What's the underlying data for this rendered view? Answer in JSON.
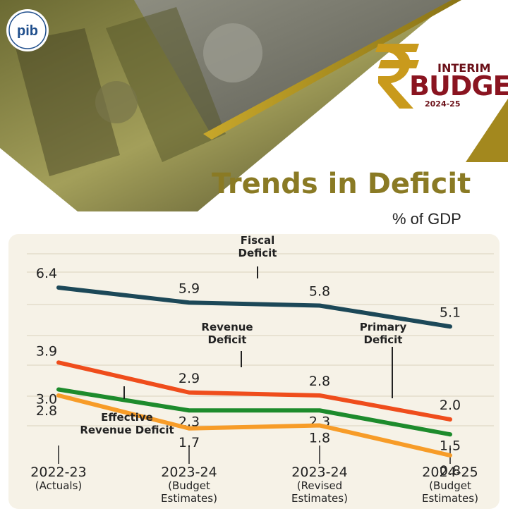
{
  "header": {
    "logo_text": "pib",
    "budget_small": "INTERIM",
    "budget_word": "BUDGET",
    "budget_year": "2024-25"
  },
  "title": "Trends in Deficit",
  "unit": "% of GDP",
  "colors": {
    "fiscal": "#1c4858",
    "revenue": "#ef4d1c",
    "primary": "#1d8b2c",
    "effective": "#f79c28",
    "olive": "#8a7a24",
    "card": "#f6f2e7",
    "grid": "#e3ddcc"
  },
  "chart_data": {
    "type": "line",
    "title": "Trends in Deficit",
    "ylabel": "% of GDP",
    "categories": [
      [
        "2022-23",
        "(Actuals)"
      ],
      [
        "2023-24",
        "(Budget",
        "Estimates)"
      ],
      [
        "2023-24",
        "(Revised",
        "Estimates)"
      ],
      [
        "2024-25",
        "(Budget",
        "Estimates)"
      ]
    ],
    "series": [
      {
        "name": "Fiscal Deficit",
        "label_lines": [
          "Fiscal",
          "Deficit"
        ],
        "values": [
          6.4,
          5.9,
          5.8,
          5.1
        ],
        "value_labels": [
          "6.4",
          "5.9",
          "5.8",
          "5.1"
        ],
        "color": "#1c4858"
      },
      {
        "name": "Revenue Deficit",
        "label_lines": [
          "Revenue",
          "Deficit"
        ],
        "values": [
          3.9,
          2.9,
          2.8,
          2.0
        ],
        "value_labels": [
          "3.9",
          "2.9",
          "2.8",
          "2.0"
        ],
        "color": "#ef4d1c"
      },
      {
        "name": "Primary Deficit",
        "label_lines": [
          "Primary",
          "Deficit"
        ],
        "values": [
          3.0,
          2.3,
          2.3,
          1.5
        ],
        "value_labels": [
          "3.0",
          "2.3",
          "2.3",
          "1.5"
        ],
        "color": "#1d8b2c"
      },
      {
        "name": "Effective Revenue Deficit",
        "label_lines": [
          "Effective",
          "Revenue Deficit"
        ],
        "values": [
          2.8,
          1.7,
          1.8,
          0.8
        ],
        "value_labels": [
          "2.8",
          "1.7",
          "1.8",
          "0.8"
        ],
        "color": "#f79c28"
      }
    ],
    "grid": true,
    "legend": "inline labels"
  }
}
